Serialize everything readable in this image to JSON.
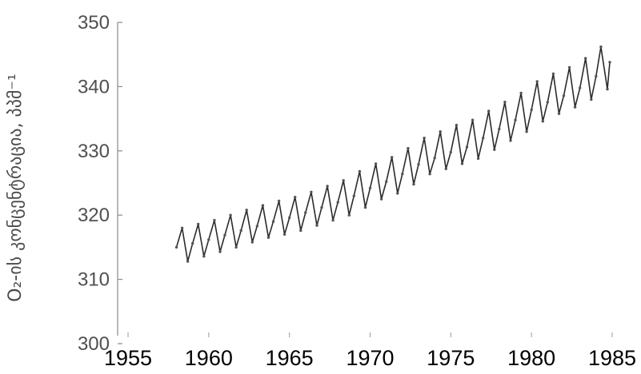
{
  "chart_data": {
    "type": "line",
    "title": "",
    "xlabel": "",
    "ylabel": "O₂-ის კონცენტრაცია, პპმ⁻¹",
    "xlim": [
      1955,
      1985
    ],
    "ylim": [
      300,
      350
    ],
    "xticks": [
      "1955",
      "1960",
      "1965",
      "1970",
      "1975",
      "1980",
      "1985"
    ],
    "yticks": [
      "300",
      "310",
      "320",
      "330",
      "340",
      "350"
    ],
    "grid": false,
    "series": [
      {
        "points": [
          [
            1958.0,
            315.0
          ],
          [
            1958.35,
            318.0
          ],
          [
            1958.7,
            312.8
          ],
          [
            1959.0,
            315.6
          ],
          [
            1959.35,
            318.6
          ],
          [
            1959.7,
            313.6
          ],
          [
            1960.0,
            316.2
          ],
          [
            1960.35,
            319.2
          ],
          [
            1960.7,
            314.3
          ],
          [
            1961.0,
            316.9
          ],
          [
            1961.35,
            320.0
          ],
          [
            1961.7,
            315.0
          ],
          [
            1962.0,
            317.6
          ],
          [
            1962.35,
            320.8
          ],
          [
            1962.7,
            315.8
          ],
          [
            1963.0,
            318.3
          ],
          [
            1963.35,
            321.5
          ],
          [
            1963.7,
            316.5
          ],
          [
            1964.0,
            319.0
          ],
          [
            1964.35,
            322.2
          ],
          [
            1964.7,
            317.0
          ],
          [
            1965.0,
            319.6
          ],
          [
            1965.35,
            322.8
          ],
          [
            1965.7,
            317.6
          ],
          [
            1966.0,
            320.4
          ],
          [
            1966.35,
            323.6
          ],
          [
            1966.7,
            318.4
          ],
          [
            1967.0,
            321.2
          ],
          [
            1967.35,
            324.5
          ],
          [
            1967.7,
            319.2
          ],
          [
            1968.0,
            322.0
          ],
          [
            1968.35,
            325.4
          ],
          [
            1968.7,
            320.0
          ],
          [
            1969.0,
            323.0
          ],
          [
            1969.35,
            326.8
          ],
          [
            1969.7,
            321.2
          ],
          [
            1970.0,
            324.2
          ],
          [
            1970.35,
            328.0
          ],
          [
            1970.7,
            322.5
          ],
          [
            1971.0,
            325.2
          ],
          [
            1971.35,
            329.0
          ],
          [
            1971.7,
            323.4
          ],
          [
            1972.0,
            326.4
          ],
          [
            1972.35,
            330.4
          ],
          [
            1972.7,
            324.8
          ],
          [
            1973.0,
            327.9
          ],
          [
            1973.35,
            332.0
          ],
          [
            1973.7,
            326.4
          ],
          [
            1974.0,
            328.9
          ],
          [
            1974.35,
            333.0
          ],
          [
            1974.7,
            327.2
          ],
          [
            1975.0,
            329.8
          ],
          [
            1975.35,
            334.0
          ],
          [
            1975.7,
            328.0
          ],
          [
            1976.0,
            330.6
          ],
          [
            1976.35,
            334.8
          ],
          [
            1976.7,
            328.8
          ],
          [
            1977.0,
            332.0
          ],
          [
            1977.35,
            336.2
          ],
          [
            1977.7,
            330.2
          ],
          [
            1978.0,
            333.4
          ],
          [
            1978.35,
            337.6
          ],
          [
            1978.7,
            331.6
          ],
          [
            1979.0,
            334.8
          ],
          [
            1979.35,
            339.0
          ],
          [
            1979.7,
            333.0
          ],
          [
            1980.0,
            336.4
          ],
          [
            1980.35,
            340.8
          ],
          [
            1980.7,
            334.6
          ],
          [
            1981.0,
            337.6
          ],
          [
            1981.35,
            342.0
          ],
          [
            1981.7,
            335.8
          ],
          [
            1982.0,
            338.6
          ],
          [
            1982.35,
            343.0
          ],
          [
            1982.7,
            336.8
          ],
          [
            1983.0,
            339.8
          ],
          [
            1983.35,
            344.4
          ],
          [
            1983.7,
            338.0
          ],
          [
            1984.0,
            341.6
          ],
          [
            1984.3,
            346.2
          ],
          [
            1984.7,
            339.6
          ],
          [
            1984.85,
            343.8
          ]
        ]
      }
    ]
  }
}
